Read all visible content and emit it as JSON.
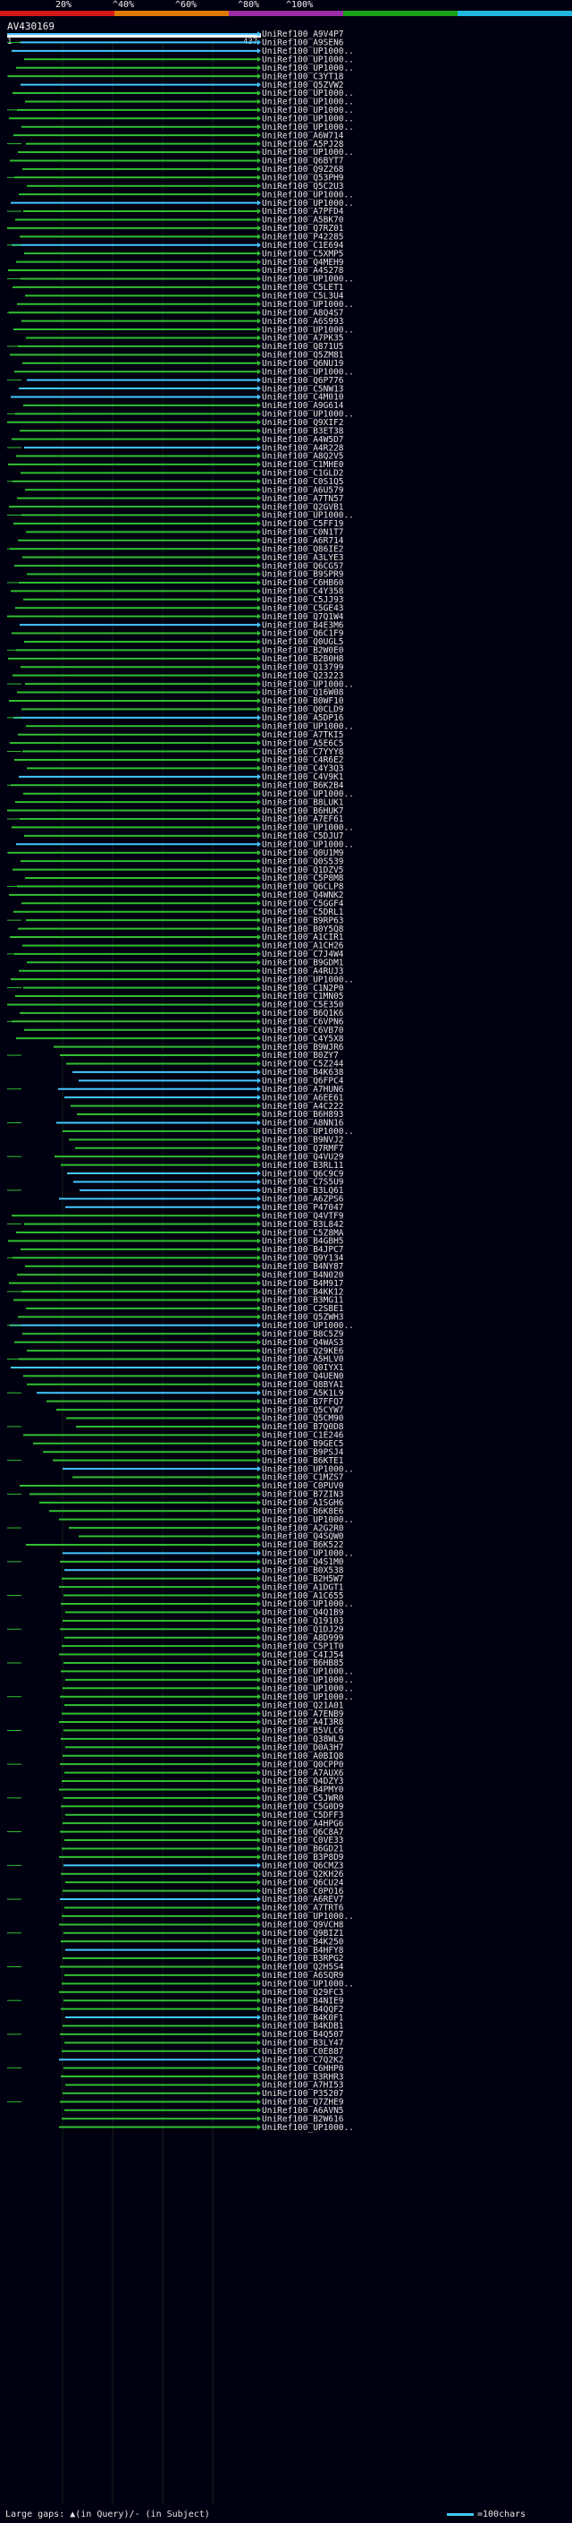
{
  "query": {
    "name": "AV430169",
    "start": "1",
    "end": "437"
  },
  "scale_ticks": [
    "20%",
    "^40%",
    "^60%",
    "^80%",
    "^100%"
  ],
  "scale_colors": [
    "#d41818",
    "#e07a00",
    "#9a2ca8",
    "#18a018",
    "#20b8e0"
  ],
  "colors": {
    "cyan": "#44c8ff",
    "green": "#30c030",
    "grid": "#12241c"
  },
  "footer": {
    "legend_left": "Large gaps: ▲(in Query)/- (in Subject)",
    "legend_right": "=100chars"
  },
  "hits": [
    "UniRef100_A9V4P7",
    "UniRef100_A9SEN6",
    "UniRef100_UP1000..",
    "UniRef100_UP1000..",
    "UniRef100_UP1000..",
    "UniRef100_C3YT18",
    "UniRef100_Q5ZVW2",
    "UniRef100_UP1000..",
    "UniRef100_UP1000..",
    "UniRef100_UP1000..",
    "UniRef100_UP1000..",
    "UniRef100_UP1000..",
    "UniRef100_A6W714",
    "UniRef100_A5PJ28",
    "UniRef100_UP1000..",
    "UniRef100_Q6BYT7",
    "UniRef100_Q9Z268",
    "UniRef100_Q53PH9",
    "UniRef100_Q5C2U3",
    "UniRef100_UP1000..",
    "UniRef100_UP1000..",
    "UniRef100_A7PFD4",
    "UniRef100_A5BK70",
    "UniRef100_Q7RZ01",
    "UniRef100_P42285",
    "UniRef100_C1E694",
    "UniRef100_C5XMP5",
    "UniRef100_Q4MEH9",
    "UniRef100_A4S278",
    "UniRef100_UP1000..",
    "UniRef100_C5LET1",
    "UniRef100_C5L3U4",
    "UniRef100_UP1000..",
    "UniRef100_A8Q4S7",
    "UniRef100_A6S993",
    "UniRef100_UP1000..",
    "UniRef100_A7PK35",
    "UniRef100_Q871U5",
    "UniRef100_Q5ZM81",
    "UniRef100_Q6NU19",
    "UniRef100_UP1000..",
    "UniRef100_Q6P776",
    "UniRef100_C5NW13",
    "UniRef100_C4M010",
    "UniRef100_A9G614",
    "UniRef100_UP1000..",
    "UniRef100_Q9XIF2",
    "UniRef100_B3ET38",
    "UniRef100_A4W5D7",
    "UniRef100_A4R228",
    "UniRef100_A8Q2V5",
    "UniRef100_C1MHE0",
    "UniRef100_C1GLD2",
    "UniRef100_C0S1Q5",
    "UniRef100_A6U579",
    "UniRef100_A7TN57",
    "UniRef100_Q2GVB1",
    "UniRef100_UP1000..",
    "UniRef100_C5FF19",
    "UniRef100_C0N1T7",
    "UniRef100_A6R714",
    "UniRef100_Q86IE2",
    "UniRef100_A3LYE3",
    "UniRef100_Q6CG57",
    "UniRef100_B9SPR9",
    "UniRef100_C6HB60",
    "UniRef100_C4Y358",
    "UniRef100_C5JJ93",
    "UniRef100_C5GE43",
    "UniRef100_Q7Q1W4",
    "UniRef100_B4E3M6",
    "UniRef100_Q6C1F9",
    "UniRef100_Q0UGL5",
    "UniRef100_B2W0E0",
    "UniRef100_B2B0H8",
    "UniRef100_Q13799",
    "UniRef100_Q23223",
    "UniRef100_UP1000..",
    "UniRef100_Q16W08",
    "UniRef100_B0WF10",
    "UniRef100_Q0CLD9",
    "UniRef100_A5DP16",
    "UniRef100_UP1000..",
    "UniRef100_A7TKI5",
    "UniRef100_A5E6C5",
    "UniRef100_C7YYY8",
    "UniRef100_C4R6E2",
    "UniRef100_C4Y3Q3",
    "UniRef100_C4V9K1",
    "UniRef100_B6K2B4",
    "UniRef100_UP1000..",
    "UniRef100_B8LUK1",
    "UniRef100_B6HUK7",
    "UniRef100_A7EF61",
    "UniRef100_UP1000..",
    "UniRef100_C5DJU7",
    "UniRef100_UP1000..",
    "UniRef100_Q0U1M9",
    "UniRef100_Q0S539",
    "UniRef100_Q1DZV5",
    "UniRef100_C5P8M8",
    "UniRef100_Q6CLP8",
    "UniRef100_Q4WNK2",
    "UniRef100_C5GGF4",
    "UniRef100_C5DRL1",
    "UniRef100_B9RP63",
    "UniRef100_B0Y5Q8",
    "UniRef100_A1CIR1",
    "UniRef100_A1CH26",
    "UniRef100_C7J4W4",
    "UniRef100_B9GDM1",
    "UniRef100_A4RUJ3",
    "UniRef100_UP1000..",
    "UniRef100_C1N2P0",
    "UniRef100_C1MN05",
    "UniRef100_C5E350",
    "UniRef100_B6Q1K6",
    "UniRef100_C6VPN6",
    "UniRef100_C6VB70",
    "UniRef100_C4Y5X8",
    "UniRef100_B9WJR6",
    "UniRef100_B0ZY7",
    "UniRef100_C5Z244",
    "UniRef100_B4K638",
    "UniRef100_Q6FPC4",
    "UniRef100_A7HUN6",
    "UniRef100_A6EE61",
    "UniRef100_A4C222",
    "UniRef100_B6H893",
    "UniRef100_A8NN16",
    "UniRef100_UP1000..",
    "UniRef100_B9NVJ2",
    "UniRef100_Q7RMF7",
    "UniRef100_Q4VU29",
    "UniRef100_B3RL11",
    "UniRef100_Q6C9C9",
    "UniRef100_C7S5U9",
    "UniRef100_B3LQ61",
    "UniRef100_A6ZPS6",
    "UniRef100_P47047",
    "UniRef100_Q4VTF9",
    "UniRef100_B3L842",
    "UniRef100_C5Z8MA",
    "UniRef100_B4GBH5",
    "UniRef100_B4JPC7",
    "UniRef100_Q9Y134",
    "UniRef100_B4NY87",
    "UniRef100_B4N020",
    "UniRef100_B4M917",
    "UniRef100_B4KK12",
    "UniRef100_B3MG11",
    "UniRef100_C2SBE1",
    "UniRef100_Q5ZWH3",
    "UniRef100_UP1000..",
    "UniRef100_B8C5Z9",
    "UniRef100_Q4WAS3",
    "UniRef100_Q29KE6",
    "UniRef100_A5HLV0",
    "UniRef100_Q0IYX1",
    "UniRef100_Q4UEN0",
    "UniRef100_Q8BYA1",
    "UniRef100_A5K1L9",
    "UniRef100_B7FFQ7",
    "UniRef100_Q5CYW7",
    "UniRef100_Q5CM90",
    "UniRef100_B7Q0D8",
    "UniRef100_C1E246",
    "UniRef100_B9GEC5",
    "UniRef100_B9PSJ4",
    "UniRef100_B6KTE1",
    "UniRef100_UP1000..",
    "UniRef100_C1MZS7",
    "UniRef100_C0PUV0",
    "UniRef100_B7ZIN3",
    "UniRef100_A1SGH6",
    "UniRef100_B6K8E6",
    "UniRef100_UP1000..",
    "UniRef100_A2G2R0",
    "UniRef100_Q4SQW0",
    "UniRef100_B6K522",
    "UniRef100_UP1000..",
    "UniRef100_Q4S1M0",
    "UniRef100_B0X538",
    "UniRef100_B2H5W7",
    "UniRef100_A1DGT1",
    "UniRef100_A1C655",
    "UniRef100_UP1000..",
    "UniRef100_Q4Q1B9",
    "UniRef100_Q19103",
    "UniRef100_Q1DJ29",
    "UniRef100_A8D999",
    "UniRef100_C5P1T0",
    "UniRef100_C4IJ54",
    "UniRef100_B6HB85",
    "UniRef100_UP1000..",
    "UniRef100_UP1000..",
    "UniRef100_UP1000..",
    "UniRef100_UP1000..",
    "UniRef100_Q21A01",
    "UniRef100_A7ENB9",
    "UniRef100_A4I3R8",
    "UniRef100_B5VLC6",
    "UniRef100_Q38WL9",
    "UniRef100_D0A3H7",
    "UniRef100_A0BIQ8",
    "UniRef100_Q0CPP0",
    "UniRef100_A7AUX6",
    "UniRef100_Q4DZY3",
    "UniRef100_B4PMY0",
    "UniRef100_C5JWR0",
    "UniRef100_C5G0D9",
    "UniRef100_C5DFF3",
    "UniRef100_A4HPG6",
    "UniRef100_Q6C8A7",
    "UniRef100_C0VE33",
    "UniRef100_B6GD21",
    "UniRef100_B3P8D9",
    "UniRef100_Q6CMZ3",
    "UniRef100_Q2KH26",
    "UniRef100_Q6CU24",
    "UniRef100_C0PO16",
    "UniRef100_A6REV7",
    "UniRef100_A7TRT6",
    "UniRef100_UP1000..",
    "UniRef100_Q9VCH8",
    "UniRef100_Q9BIZ1",
    "UniRef100_B4K250",
    "UniRef100_B4HFY8",
    "UniRef100_B3RPG2",
    "UniRef100_Q2H5S4",
    "UniRef100_A6SQR9",
    "UniRef100_UP1000..",
    "UniRef100_Q29FC3",
    "UniRef100_B4NIE9",
    "UniRef100_B4QQF2",
    "UniRef100_B4K0F1",
    "UniRef100_B4KDB1",
    "UniRef100_B4Q507",
    "UniRef100_B3LY47",
    "UniRef100_C0E887",
    "UniRef100_C7Q2K2",
    "UniRef100_C6HHP0",
    "UniRef100_B3RHR3",
    "UniRef100_A7HI53",
    "UniRef100_P35207",
    "UniRef100_Q7ZHE9",
    "UniRef100_A6AVN5",
    "UniRef100_B2W616",
    "UniRef100_UP1000.."
  ]
}
